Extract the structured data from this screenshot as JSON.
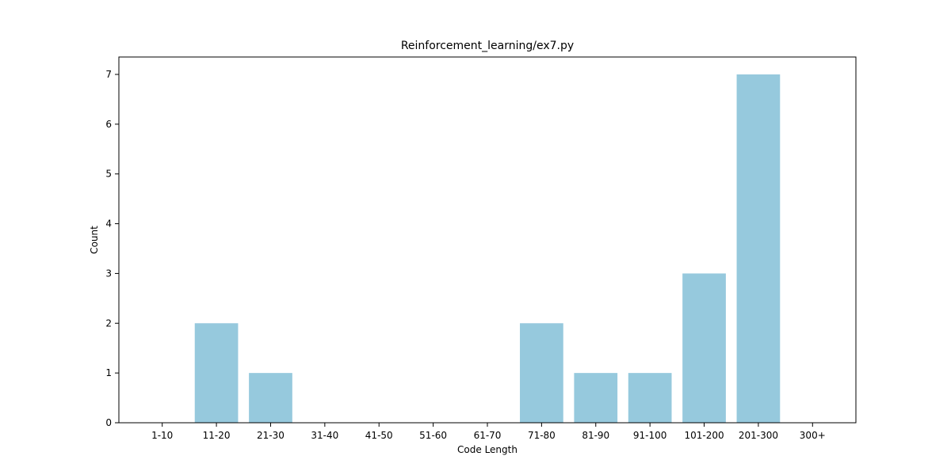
{
  "chart_data": {
    "type": "bar",
    "title": "Reinforcement_learning/ex7.py",
    "xlabel": "Code Length",
    "ylabel": "Count",
    "categories": [
      "1-10",
      "11-20",
      "21-30",
      "31-40",
      "41-50",
      "51-60",
      "61-70",
      "71-80",
      "81-90",
      "91-100",
      "101-200",
      "201-300",
      "300+"
    ],
    "values": [
      0,
      2,
      1,
      0,
      0,
      0,
      0,
      2,
      1,
      1,
      3,
      7,
      0
    ],
    "ylim": [
      0,
      7.35
    ],
    "yticks": [
      0,
      1,
      2,
      3,
      4,
      5,
      6,
      7
    ],
    "grid": false,
    "bar_color": "#96c9dd",
    "axis_color": "#000000"
  }
}
